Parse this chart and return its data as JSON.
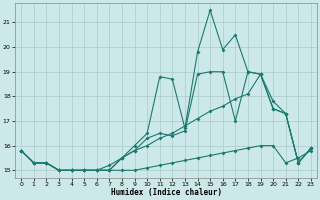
{
  "xlabel": "Humidex (Indice chaleur)",
  "x": [
    0,
    1,
    2,
    3,
    4,
    5,
    6,
    7,
    8,
    9,
    10,
    11,
    12,
    13,
    14,
    15,
    16,
    17,
    18,
    19,
    20,
    21,
    22,
    23
  ],
  "line_top_jagged": [
    15.8,
    15.3,
    15.3,
    15.0,
    15.0,
    15.0,
    15.0,
    15.0,
    15.5,
    16.0,
    16.5,
    18.8,
    18.7,
    16.7,
    19.8,
    21.5,
    19.9,
    20.5,
    19.0,
    18.9,
    17.5,
    17.3,
    15.3,
    15.9
  ],
  "line_mid_jagged": [
    15.8,
    15.3,
    15.3,
    15.0,
    15.0,
    15.0,
    15.0,
    15.0,
    15.5,
    15.8,
    16.3,
    16.5,
    16.4,
    16.6,
    18.9,
    19.0,
    19.0,
    17.0,
    19.0,
    18.9,
    17.5,
    17.3,
    15.3,
    15.9
  ],
  "line_smooth_high": [
    15.8,
    15.3,
    15.3,
    15.0,
    15.0,
    15.0,
    15.0,
    15.2,
    15.5,
    15.8,
    16.0,
    16.3,
    16.5,
    16.8,
    17.1,
    17.4,
    17.6,
    17.9,
    18.1,
    18.9,
    17.8,
    17.3,
    15.3,
    15.9
  ],
  "line_smooth_low": [
    15.8,
    15.3,
    15.3,
    15.0,
    15.0,
    15.0,
    15.0,
    15.0,
    15.0,
    15.0,
    15.1,
    15.2,
    15.3,
    15.4,
    15.5,
    15.6,
    15.7,
    15.8,
    15.9,
    16.0,
    16.0,
    15.3,
    15.5,
    15.8
  ],
  "color": "#1a7a6e",
  "bg_color": "#cde8e8",
  "grid_color": "#aacccc",
  "ylim": [
    14.7,
    21.8
  ],
  "xlim": [
    -0.5,
    23.5
  ],
  "yticks": [
    15,
    16,
    17,
    18,
    19,
    20,
    21
  ],
  "xticks": [
    0,
    1,
    2,
    3,
    4,
    5,
    6,
    7,
    8,
    9,
    10,
    11,
    12,
    13,
    14,
    15,
    16,
    17,
    18,
    19,
    20,
    21,
    22,
    23
  ]
}
